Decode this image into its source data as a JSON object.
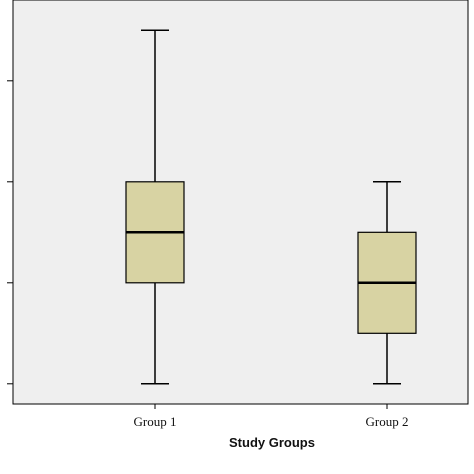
{
  "chart_data": {
    "type": "boxplot",
    "xlabel": "Study Groups",
    "ylabel": "",
    "categories": [
      "Group 1",
      "Group 2"
    ],
    "boxes": [
      {
        "category": "Group 1",
        "min": 1.0,
        "q1": 2.0,
        "median": 2.5,
        "q3": 3.0,
        "max": 4.5
      },
      {
        "category": "Group 2",
        "min": 1.0,
        "q1": 1.5,
        "median": 2.0,
        "q3": 2.5,
        "max": 3.0
      }
    ],
    "y_ticks": [
      1,
      2,
      3,
      4
    ],
    "ylim": [
      0.8,
      4.8
    ],
    "grid": false,
    "colors": {
      "plot_background": "#efefef",
      "box_fill": "#d8d3a3",
      "line": "#000000",
      "outside_background": "#ffffff"
    }
  }
}
